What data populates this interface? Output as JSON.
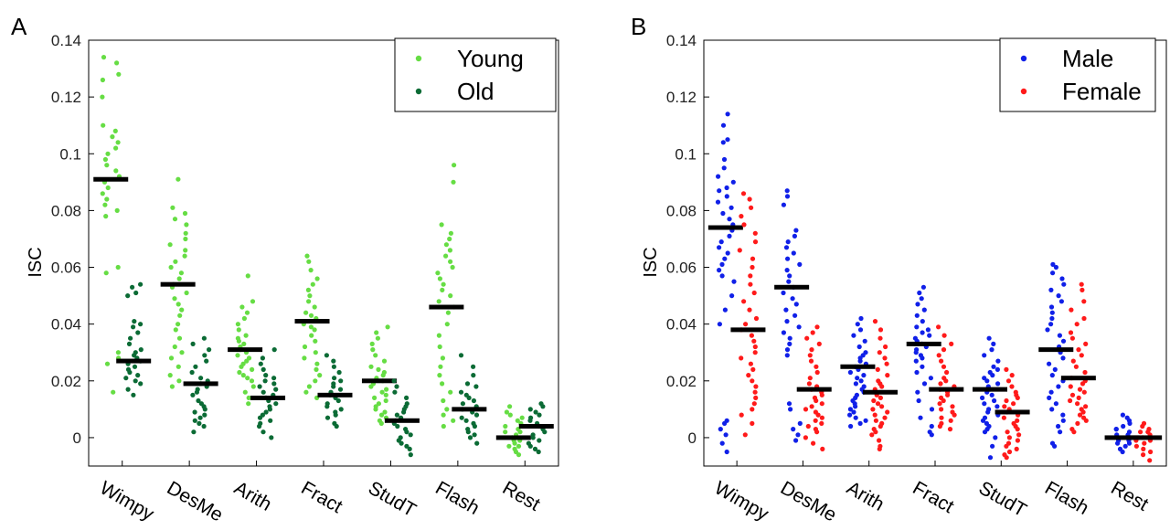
{
  "chart_data": [
    {
      "type": "scatter",
      "panel_label": "A",
      "title": "",
      "xlabel": "",
      "ylabel": "ISC",
      "ylim": [
        -0.01,
        0.14
      ],
      "yticks": [
        "0",
        "0.02",
        "0.04",
        "0.06",
        "0.08",
        "0.1",
        "0.12",
        "0.14"
      ],
      "categories": [
        "Wimpy",
        "DesMe",
        "Arith",
        "Fract",
        "StudT",
        "Flash",
        "Rest"
      ],
      "legend": {
        "placement": "top-right"
      },
      "grid": false,
      "series": [
        {
          "name": "Young",
          "color": "#66dd44",
          "means": [
            0.091,
            0.054,
            0.031,
            0.041,
            0.02,
            0.046,
            0.0
          ],
          "points": [
            [
              0.134,
              0.132,
              0.128,
              0.126,
              0.12,
              0.11,
              0.108,
              0.106,
              0.104,
              0.102,
              0.1,
              0.098,
              0.096,
              0.094,
              0.092,
              0.09,
              0.088,
              0.086,
              0.084,
              0.082,
              0.08,
              0.078,
              0.06,
              0.058,
              0.03,
              0.028,
              0.026,
              0.016
            ],
            [
              0.091,
              0.081,
              0.079,
              0.077,
              0.075,
              0.072,
              0.07,
              0.068,
              0.066,
              0.064,
              0.062,
              0.06,
              0.058,
              0.056,
              0.054,
              0.053,
              0.051,
              0.049,
              0.047,
              0.045,
              0.043,
              0.04,
              0.038,
              0.035,
              0.032,
              0.03,
              0.028,
              0.025,
              0.022,
              0.02,
              0.018
            ],
            [
              0.057,
              0.048,
              0.046,
              0.044,
              0.042,
              0.04,
              0.038,
              0.036,
              0.035,
              0.034,
              0.033,
              0.032,
              0.031,
              0.03,
              0.029,
              0.028,
              0.027,
              0.026,
              0.025,
              0.024,
              0.023,
              0.022,
              0.021,
              0.02,
              0.018,
              0.016,
              0.014,
              0.012
            ],
            [
              0.064,
              0.062,
              0.059,
              0.056,
              0.054,
              0.052,
              0.05,
              0.048,
              0.046,
              0.044,
              0.043,
              0.042,
              0.041,
              0.04,
              0.039,
              0.038,
              0.036,
              0.034,
              0.032,
              0.03,
              0.028,
              0.026,
              0.024,
              0.022,
              0.02,
              0.018,
              0.016,
              0.014
            ],
            [
              0.039,
              0.037,
              0.035,
              0.033,
              0.031,
              0.029,
              0.027,
              0.025,
              0.024,
              0.023,
              0.022,
              0.021,
              0.02,
              0.019,
              0.018,
              0.017,
              0.016,
              0.015,
              0.014,
              0.013,
              0.012,
              0.011,
              0.01,
              0.009,
              0.008,
              0.007,
              0.006,
              0.005
            ],
            [
              0.096,
              0.09,
              0.075,
              0.072,
              0.07,
              0.068,
              0.066,
              0.064,
              0.062,
              0.06,
              0.058,
              0.056,
              0.054,
              0.052,
              0.05,
              0.048,
              0.046,
              0.044,
              0.04,
              0.036,
              0.032,
              0.028,
              0.025,
              0.022,
              0.019,
              0.016,
              0.013,
              0.01,
              0.008,
              0.006,
              0.004
            ],
            [
              0.011,
              0.009,
              0.007,
              0.005,
              0.004,
              0.003,
              0.002,
              0.001,
              0.0,
              -0.001,
              -0.002,
              -0.003,
              -0.004,
              -0.005,
              -0.006,
              0.008,
              0.006,
              0.002,
              -0.001,
              -0.003
            ]
          ]
        },
        {
          "name": "Old",
          "color": "#0b6b35",
          "means": [
            0.027,
            0.019,
            0.014,
            0.015,
            0.006,
            0.01,
            0.004
          ],
          "points": [
            [
              0.054,
              0.053,
              0.051,
              0.05,
              0.041,
              0.04,
              0.039,
              0.037,
              0.035,
              0.033,
              0.031,
              0.03,
              0.029,
              0.028,
              0.027,
              0.026,
              0.025,
              0.024,
              0.023,
              0.022,
              0.021,
              0.02,
              0.019,
              0.017,
              0.015
            ],
            [
              0.035,
              0.033,
              0.031,
              0.029,
              0.027,
              0.025,
              0.023,
              0.021,
              0.02,
              0.019,
              0.018,
              0.017,
              0.016,
              0.015,
              0.013,
              0.012,
              0.011,
              0.01,
              0.009,
              0.008,
              0.007,
              0.006,
              0.005,
              0.004,
              0.002
            ],
            [
              0.031,
              0.028,
              0.026,
              0.024,
              0.022,
              0.021,
              0.02,
              0.019,
              0.018,
              0.017,
              0.016,
              0.015,
              0.014,
              0.013,
              0.012,
              0.011,
              0.01,
              0.009,
              0.008,
              0.007,
              0.006,
              0.005,
              0.004,
              0.002,
              0.0
            ],
            [
              0.029,
              0.027,
              0.025,
              0.023,
              0.021,
              0.02,
              0.019,
              0.018,
              0.017,
              0.016,
              0.015,
              0.014,
              0.013,
              0.012,
              0.011,
              0.01,
              0.009,
              0.008,
              0.007,
              0.005,
              0.004
            ],
            [
              0.02,
              0.018,
              0.016,
              0.014,
              0.012,
              0.011,
              0.01,
              0.009,
              0.008,
              0.007,
              0.006,
              0.005,
              0.004,
              0.003,
              0.002,
              0.001,
              0.0,
              -0.001,
              -0.002,
              -0.003,
              -0.004,
              -0.006
            ],
            [
              0.029,
              0.025,
              0.022,
              0.019,
              0.018,
              0.016,
              0.015,
              0.014,
              0.013,
              0.012,
              0.011,
              0.01,
              0.009,
              0.008,
              0.007,
              0.006,
              0.005,
              0.004,
              0.003,
              0.002,
              0.001,
              0.0,
              -0.002
            ],
            [
              0.012,
              0.011,
              0.01,
              0.009,
              0.008,
              0.007,
              0.006,
              0.005,
              0.004,
              0.003,
              0.002,
              0.001,
              0.0,
              -0.001,
              -0.002,
              -0.003,
              -0.004,
              -0.005
            ]
          ]
        }
      ]
    },
    {
      "type": "scatter",
      "panel_label": "B",
      "title": "",
      "xlabel": "",
      "ylabel": "ISC",
      "ylim": [
        -0.01,
        0.14
      ],
      "yticks": [
        "0",
        "0.02",
        "0.04",
        "0.06",
        "0.08",
        "0.1",
        "0.12",
        "0.14"
      ],
      "categories": [
        "Wimpy",
        "DesMe",
        "Arith",
        "Fract",
        "StudT",
        "Flash",
        "Rest"
      ],
      "legend": {
        "placement": "top-right"
      },
      "grid": false,
      "series": [
        {
          "name": "Male",
          "color": "#1020e8",
          "means": [
            0.074,
            0.053,
            0.025,
            0.033,
            0.017,
            0.031,
            0.0
          ],
          "points": [
            [
              0.114,
              0.11,
              0.105,
              0.104,
              0.098,
              0.095,
              0.092,
              0.09,
              0.088,
              0.087,
              0.085,
              0.083,
              0.081,
              0.079,
              0.077,
              0.075,
              0.073,
              0.071,
              0.069,
              0.067,
              0.065,
              0.063,
              0.061,
              0.059,
              0.057,
              0.055,
              0.05,
              0.045,
              0.04,
              0.006,
              0.005,
              0.003,
              0.001,
              -0.002,
              -0.005
            ],
            [
              0.087,
              0.085,
              0.082,
              0.073,
              0.071,
              0.069,
              0.067,
              0.065,
              0.063,
              0.061,
              0.059,
              0.057,
              0.055,
              0.053,
              0.051,
              0.049,
              0.047,
              0.045,
              0.043,
              0.041,
              0.039,
              0.037,
              0.035,
              0.033,
              0.031,
              0.029,
              0.012,
              0.01,
              0.005,
              0.003,
              0.001,
              -0.001
            ],
            [
              0.042,
              0.04,
              0.038,
              0.036,
              0.034,
              0.032,
              0.03,
              0.029,
              0.028,
              0.027,
              0.026,
              0.025,
              0.024,
              0.023,
              0.022,
              0.021,
              0.02,
              0.019,
              0.018,
              0.017,
              0.016,
              0.015,
              0.014,
              0.013,
              0.012,
              0.011,
              0.01,
              0.009,
              0.008,
              0.007,
              0.006,
              0.005,
              0.004
            ],
            [
              0.053,
              0.051,
              0.049,
              0.047,
              0.045,
              0.043,
              0.041,
              0.039,
              0.038,
              0.037,
              0.036,
              0.035,
              0.034,
              0.033,
              0.032,
              0.031,
              0.03,
              0.029,
              0.028,
              0.027,
              0.025,
              0.023,
              0.021,
              0.019,
              0.016,
              0.013,
              0.01,
              0.007,
              0.004,
              0.002,
              0.001
            ],
            [
              0.035,
              0.033,
              0.031,
              0.029,
              0.027,
              0.025,
              0.024,
              0.023,
              0.022,
              0.021,
              0.02,
              0.019,
              0.018,
              0.017,
              0.016,
              0.015,
              0.014,
              0.013,
              0.012,
              0.011,
              0.01,
              0.009,
              0.008,
              0.007,
              0.006,
              0.005,
              0.004,
              0.003,
              0.002,
              0.0,
              -0.003,
              -0.007
            ],
            [
              0.061,
              0.06,
              0.058,
              0.056,
              0.054,
              0.052,
              0.05,
              0.048,
              0.046,
              0.044,
              0.042,
              0.04,
              0.038,
              0.036,
              0.034,
              0.032,
              0.03,
              0.028,
              0.026,
              0.024,
              0.022,
              0.02,
              0.018,
              0.016,
              0.014,
              0.012,
              0.01,
              0.008,
              0.006,
              0.004,
              0.002,
              -0.002,
              -0.003
            ],
            [
              0.008,
              0.007,
              0.006,
              0.005,
              0.004,
              0.003,
              0.002,
              0.001,
              0.0,
              -0.001,
              -0.002,
              -0.003,
              -0.004,
              -0.005,
              0.003,
              0.001,
              -0.001,
              -0.002
            ]
          ]
        },
        {
          "name": "Female",
          "color": "#ff1a1a",
          "means": [
            0.038,
            0.017,
            0.016,
            0.017,
            0.009,
            0.021,
            0.0
          ],
          "points": [
            [
              0.086,
              0.084,
              0.081,
              0.078,
              0.075,
              0.072,
              0.069,
              0.066,
              0.063,
              0.06,
              0.057,
              0.054,
              0.051,
              0.048,
              0.045,
              0.042,
              0.04,
              0.038,
              0.036,
              0.034,
              0.032,
              0.03,
              0.028,
              0.026,
              0.024,
              0.022,
              0.02,
              0.018,
              0.016,
              0.014,
              0.012,
              0.01,
              0.008,
              0.005,
              0.001
            ],
            [
              0.039,
              0.037,
              0.035,
              0.033,
              0.031,
              0.029,
              0.027,
              0.025,
              0.023,
              0.021,
              0.019,
              0.018,
              0.017,
              0.016,
              0.015,
              0.014,
              0.013,
              0.012,
              0.011,
              0.01,
              0.009,
              0.008,
              0.007,
              0.006,
              0.005,
              0.004,
              0.003,
              0.002,
              0.0,
              -0.002,
              -0.004
            ],
            [
              0.041,
              0.038,
              0.035,
              0.032,
              0.03,
              0.028,
              0.026,
              0.024,
              0.022,
              0.02,
              0.019,
              0.018,
              0.017,
              0.016,
              0.015,
              0.014,
              0.013,
              0.012,
              0.011,
              0.01,
              0.009,
              0.008,
              0.007,
              0.006,
              0.005,
              0.004,
              0.003,
              0.002,
              0.001,
              -0.001,
              -0.003,
              -0.004
            ],
            [
              0.039,
              0.036,
              0.033,
              0.031,
              0.029,
              0.027,
              0.025,
              0.023,
              0.021,
              0.02,
              0.019,
              0.018,
              0.017,
              0.016,
              0.015,
              0.014,
              0.013,
              0.012,
              0.011,
              0.01,
              0.009,
              0.008,
              0.007,
              0.006,
              0.005,
              0.004,
              0.003
            ],
            [
              0.024,
              0.022,
              0.02,
              0.018,
              0.016,
              0.015,
              0.014,
              0.013,
              0.012,
              0.011,
              0.01,
              0.009,
              0.008,
              0.007,
              0.006,
              0.005,
              0.004,
              0.003,
              0.002,
              0.001,
              0.0,
              -0.001,
              -0.002,
              -0.003,
              -0.004,
              -0.005,
              -0.006,
              -0.007
            ],
            [
              0.054,
              0.052,
              0.048,
              0.045,
              0.042,
              0.04,
              0.037,
              0.035,
              0.033,
              0.031,
              0.029,
              0.027,
              0.025,
              0.023,
              0.021,
              0.02,
              0.019,
              0.018,
              0.017,
              0.016,
              0.015,
              0.014,
              0.013,
              0.012,
              0.011,
              0.01,
              0.009,
              0.008,
              0.007,
              0.006,
              0.005,
              0.003,
              0.002
            ],
            [
              0.005,
              0.004,
              0.003,
              0.002,
              0.001,
              0.0,
              -0.001,
              -0.002,
              -0.003,
              -0.004,
              -0.005,
              -0.006,
              -0.008,
              0.002,
              -0.001
            ]
          ]
        }
      ]
    }
  ]
}
